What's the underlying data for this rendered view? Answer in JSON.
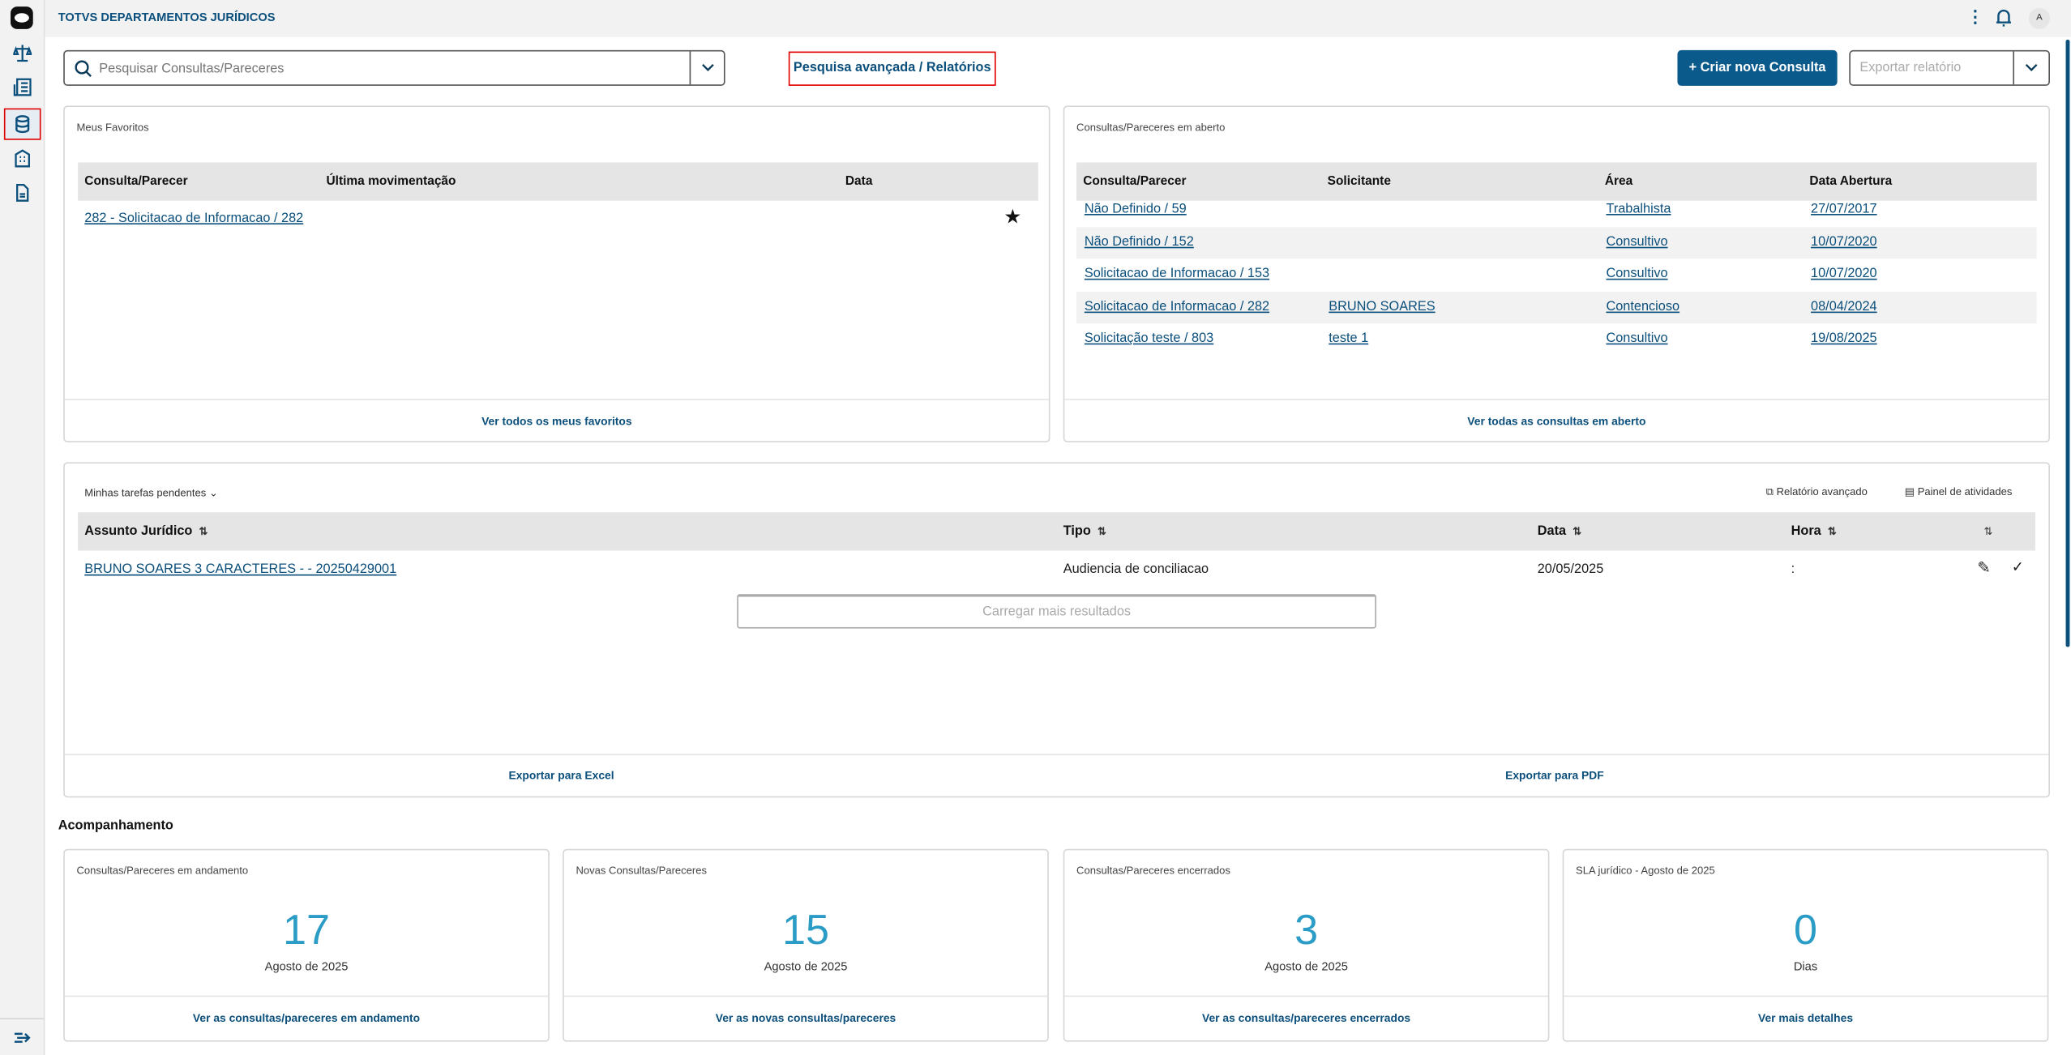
{
  "app": {
    "title": "TOTVS DEPARTAMENTOS JURÍDICOS",
    "avatar_initial": "A"
  },
  "sidebar": {
    "items": [
      {
        "icon": "scale-icon"
      },
      {
        "icon": "list-document-icon"
      },
      {
        "icon": "database-icon",
        "active": true
      },
      {
        "icon": "building-icon"
      },
      {
        "icon": "file-icon"
      }
    ],
    "collapse_icon": "expand-menu-icon"
  },
  "toolbar": {
    "search_placeholder": "Pesquisar Consultas/Pareceres",
    "advanced_search": "Pesquisa avançada / Relatórios",
    "create_button": "+ Criar nova Consulta",
    "export_placeholder": "Exportar relatório"
  },
  "favorites": {
    "title": "Meus Favoritos",
    "columns": [
      "Consulta/Parecer",
      "Última movimentação",
      "Data"
    ],
    "rows": [
      {
        "consulta": "282 - Solicitacao de Informacao / 282",
        "movimentacao": "",
        "data": "",
        "favorite": true
      }
    ],
    "footer_link": "Ver todos os meus favoritos"
  },
  "open_consultations": {
    "title": "Consultas/Pareceres em aberto",
    "columns": [
      "Consulta/Parecer",
      "Solicitante",
      "Área",
      "Data Abertura"
    ],
    "rows": [
      {
        "consulta": "Não Definido / 59",
        "solicitante": "",
        "area": "Trabalhista",
        "data": "27/07/2017"
      },
      {
        "consulta": "Não Definido / 152",
        "solicitante": "",
        "area": "Consultivo",
        "data": "10/07/2020"
      },
      {
        "consulta": "Solicitacao de Informacao / 153",
        "solicitante": "",
        "area": "Consultivo",
        "data": "10/07/2020"
      },
      {
        "consulta": "Solicitacao de Informacao / 282",
        "solicitante": "BRUNO SOARES",
        "area": "Contencioso",
        "data": "08/04/2024"
      },
      {
        "consulta": "Solicitação teste / 803",
        "solicitante": "teste 1",
        "area": "Consultivo",
        "data": "19/08/2025"
      }
    ],
    "footer_link": "Ver todas as consultas em aberto"
  },
  "tasks": {
    "title": "Minhas tarefas pendentes",
    "advanced_report": "Relatório avançado",
    "activity_panel": "Painel de atividades",
    "columns": [
      "Assunto Jurídico",
      "Tipo",
      "Data",
      "Hora"
    ],
    "rows": [
      {
        "assunto": "BRUNO SOARES 3 CARACTERES - - 20250429001",
        "tipo": "Audiencia de conciliacao",
        "data": "20/05/2025",
        "hora": ":"
      }
    ],
    "load_more": "Carregar mais resultados",
    "export_excel": "Exportar para Excel",
    "export_pdf": "Exportar para PDF"
  },
  "tracking": {
    "title": "Acompanhamento",
    "cards": [
      {
        "title": "Consultas/Pareceres em andamento",
        "value": "17",
        "subtitle": "Agosto de 2025",
        "link": "Ver as consultas/pareceres em andamento"
      },
      {
        "title": "Novas Consultas/Pareceres",
        "value": "15",
        "subtitle": "Agosto de 2025",
        "link": "Ver as novas consultas/pareceres"
      },
      {
        "title": "Consultas/Pareceres encerrados",
        "value": "3",
        "subtitle": "Agosto de 2025",
        "link": "Ver as consultas/pareceres encerrados"
      },
      {
        "title": "SLA jurídico - Agosto de 2025",
        "value": "0",
        "subtitle": "Dias",
        "link": "Ver mais detalhes"
      }
    ]
  },
  "colors": {
    "primary": "#0b5a8c",
    "accent_number": "#2a9cc6",
    "highlight_border": "#e00000"
  }
}
